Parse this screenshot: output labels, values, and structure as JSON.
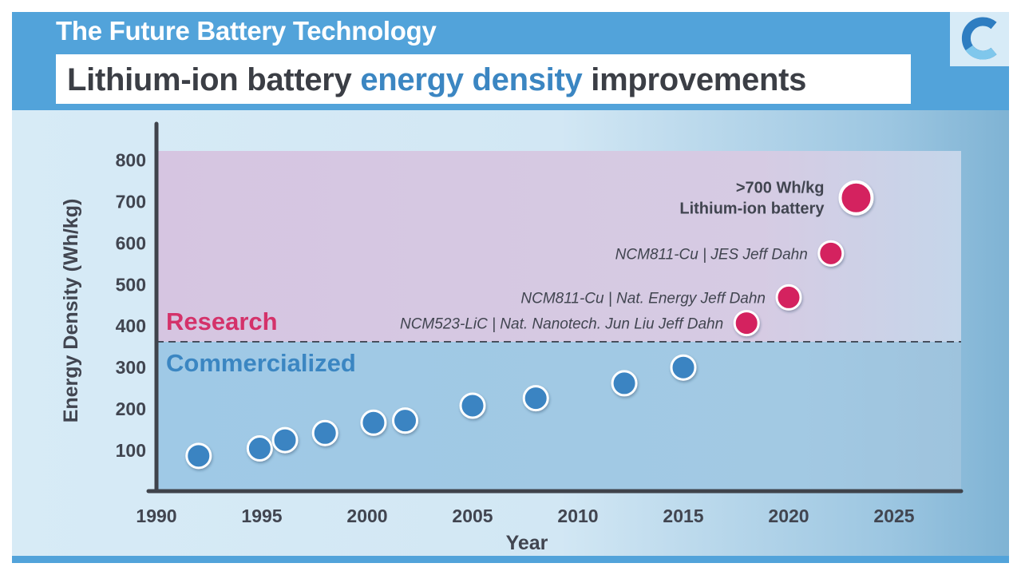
{
  "header": {
    "title": "The Future Battery Technology",
    "subtitle_pre": "Lithium-ion battery ",
    "subtitle_hl": "energy density",
    "subtitle_post": " improvements"
  },
  "colors": {
    "frame": "#52a3da",
    "research_point": "#d4235e",
    "commercial_point": "#3a84c2",
    "research_label": "#d4326a",
    "commercial_label": "#3b86c2",
    "text_dark": "#414550"
  },
  "logo": {
    "icon": "c-logo-icon"
  },
  "chart_data": {
    "type": "scatter",
    "xlabel": "Year",
    "ylabel": "Energy Density (Wh/kg)",
    "xlim": [
      1990,
      2028
    ],
    "ylim": [
      0,
      820
    ],
    "xticks": [
      "1990",
      "1995",
      "2000",
      "2005",
      "2010",
      "2015",
      "2020",
      "2025"
    ],
    "yticks": [
      "100",
      "200",
      "300",
      "400",
      "500",
      "600",
      "700",
      "800"
    ],
    "threshold": 360,
    "regions": {
      "research": "Research",
      "commercialized": "Commercialized"
    },
    "series": [
      {
        "name": "Commercialized",
        "points": [
          {
            "x": 1992,
            "y": 85
          },
          {
            "x": 1994.9,
            "y": 103
          },
          {
            "x": 1996.1,
            "y": 123
          },
          {
            "x": 1998,
            "y": 140
          },
          {
            "x": 2000.3,
            "y": 165
          },
          {
            "x": 2001.8,
            "y": 170
          },
          {
            "x": 2005,
            "y": 206
          },
          {
            "x": 2008,
            "y": 224
          },
          {
            "x": 2012.2,
            "y": 260
          },
          {
            "x": 2015,
            "y": 298
          }
        ]
      },
      {
        "name": "Research",
        "points": [
          {
            "x": 2018,
            "y": 405,
            "label": "NCM523-LiC | Nat. Nanotech. Jun Liu Jeff Dahn"
          },
          {
            "x": 2020,
            "y": 467,
            "label": "NCM811-Cu | Nat. Energy Jeff Dahn"
          },
          {
            "x": 2022,
            "y": 573,
            "label": "NCM811-Cu | JES Jeff Dahn"
          },
          {
            "x": 2023.2,
            "y": 707,
            "label": ">700 Wh/kg",
            "label2": "Lithium-ion battery",
            "size": "large"
          }
        ]
      }
    ]
  }
}
